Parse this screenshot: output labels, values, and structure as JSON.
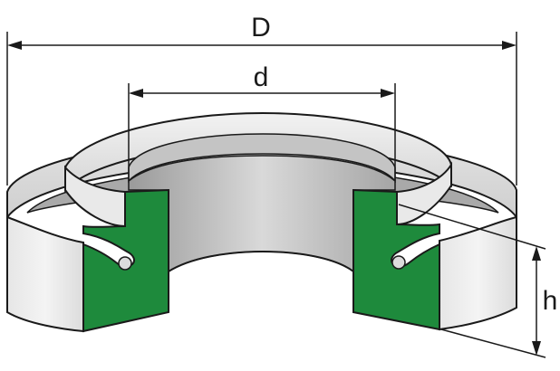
{
  "diagram": {
    "labels": {
      "outer_diameter": "D",
      "inner_diameter": "d",
      "height": "h"
    },
    "colors": {
      "section": "#1e8a3c",
      "ring_light": "#ececec",
      "ring_mid": "#c9c9c9",
      "ring_dark": "#8f8f8f",
      "outline": "#1a1a1a"
    }
  }
}
